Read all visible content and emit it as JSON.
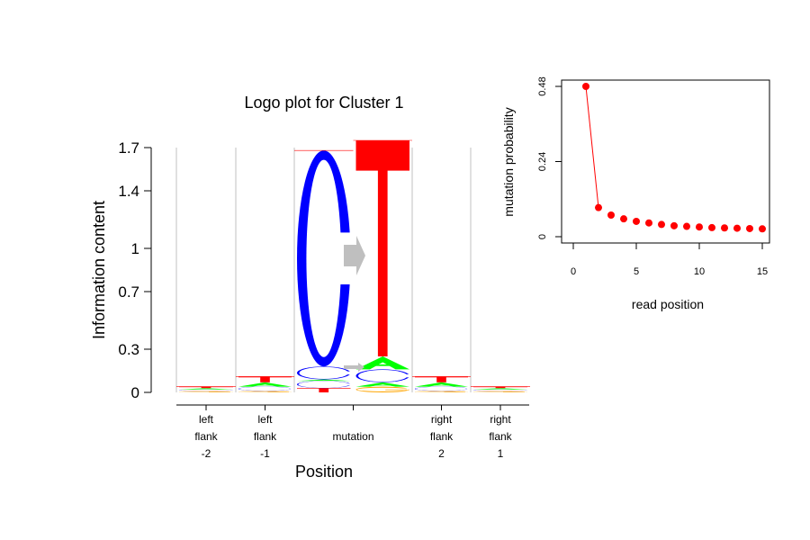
{
  "colors": {
    "A": "#00ff00",
    "C": "#0000ff",
    "G": "#ffa500",
    "T": "#ff0000",
    "arrow": "#bfbfbf",
    "separator": "#c0c0c0",
    "point": "#ff0000"
  },
  "chart_data": [
    {
      "type": "logo",
      "title": "Logo plot for Cluster 1",
      "xlabel": "Position",
      "ylabel": "Information content",
      "ylim": [
        0,
        1.7
      ],
      "yticks": [
        "0",
        "0.3",
        "0.7",
        "1",
        "1.4",
        "1.7"
      ],
      "yticks_values": [
        0,
        0.3,
        0.7,
        1,
        1.4,
        1.7
      ],
      "columns": [
        {
          "label": [
            "left",
            "flank",
            "-2"
          ],
          "stacks": [
            [
              {
                "letter": "G",
                "height": 0.01
              },
              {
                "letter": "C",
                "height": 0.01
              },
              {
                "letter": "A",
                "height": 0.01
              },
              {
                "letter": "T",
                "height": 0.01
              }
            ]
          ]
        },
        {
          "label": [
            "left",
            "flank",
            "-1"
          ],
          "stacks": [
            [
              {
                "letter": "G",
                "height": 0.01
              },
              {
                "letter": "C",
                "height": 0.03
              },
              {
                "letter": "A",
                "height": 0.03
              },
              {
                "letter": "T",
                "height": 0.04
              }
            ]
          ]
        },
        {
          "label": [
            "mutation"
          ],
          "stacks": [
            [
              {
                "letter": "T",
                "height": 0.03
              },
              {
                "letter": "C",
                "height": 0.05
              },
              {
                "letter": "A",
                "height": 0.01
              },
              {
                "letter": "C",
                "height": 0.09
              },
              {
                "letter": "C",
                "height": 1.5
              }
            ],
            [
              {
                "letter": "G",
                "height": 0.04
              },
              {
                "letter": "A",
                "height": 0.03
              },
              {
                "letter": "C",
                "height": 0.09
              },
              {
                "letter": "A",
                "height": 0.09
              },
              {
                "letter": "T",
                "height": 1.5
              }
            ]
          ]
        },
        {
          "label": [
            "right",
            "flank",
            "2"
          ],
          "stacks": [
            [
              {
                "letter": "G",
                "height": 0.01
              },
              {
                "letter": "C",
                "height": 0.03
              },
              {
                "letter": "A",
                "height": 0.03
              },
              {
                "letter": "T",
                "height": 0.04
              }
            ]
          ]
        },
        {
          "label": [
            "right",
            "flank",
            "1"
          ],
          "stacks": [
            [
              {
                "letter": "G",
                "height": 0.01
              },
              {
                "letter": "C",
                "height": 0.01
              },
              {
                "letter": "A",
                "height": 0.01
              },
              {
                "letter": "T",
                "height": 0.01
              }
            ]
          ]
        }
      ]
    },
    {
      "type": "line",
      "title": "",
      "xlabel": "read position",
      "ylabel": "mutation probability",
      "xlim": [
        0,
        15
      ],
      "ylim": [
        0,
        0.48
      ],
      "xticks": [
        0,
        5,
        10,
        15
      ],
      "yticks": [
        0,
        0.24,
        0.48
      ],
      "x": [
        1,
        2,
        3,
        4,
        5,
        6,
        7,
        8,
        9,
        10,
        11,
        12,
        13,
        14,
        15
      ],
      "y": [
        0.48,
        0.093,
        0.069,
        0.057,
        0.049,
        0.044,
        0.039,
        0.035,
        0.033,
        0.031,
        0.029,
        0.028,
        0.027,
        0.026,
        0.025
      ],
      "grid": false
    }
  ]
}
